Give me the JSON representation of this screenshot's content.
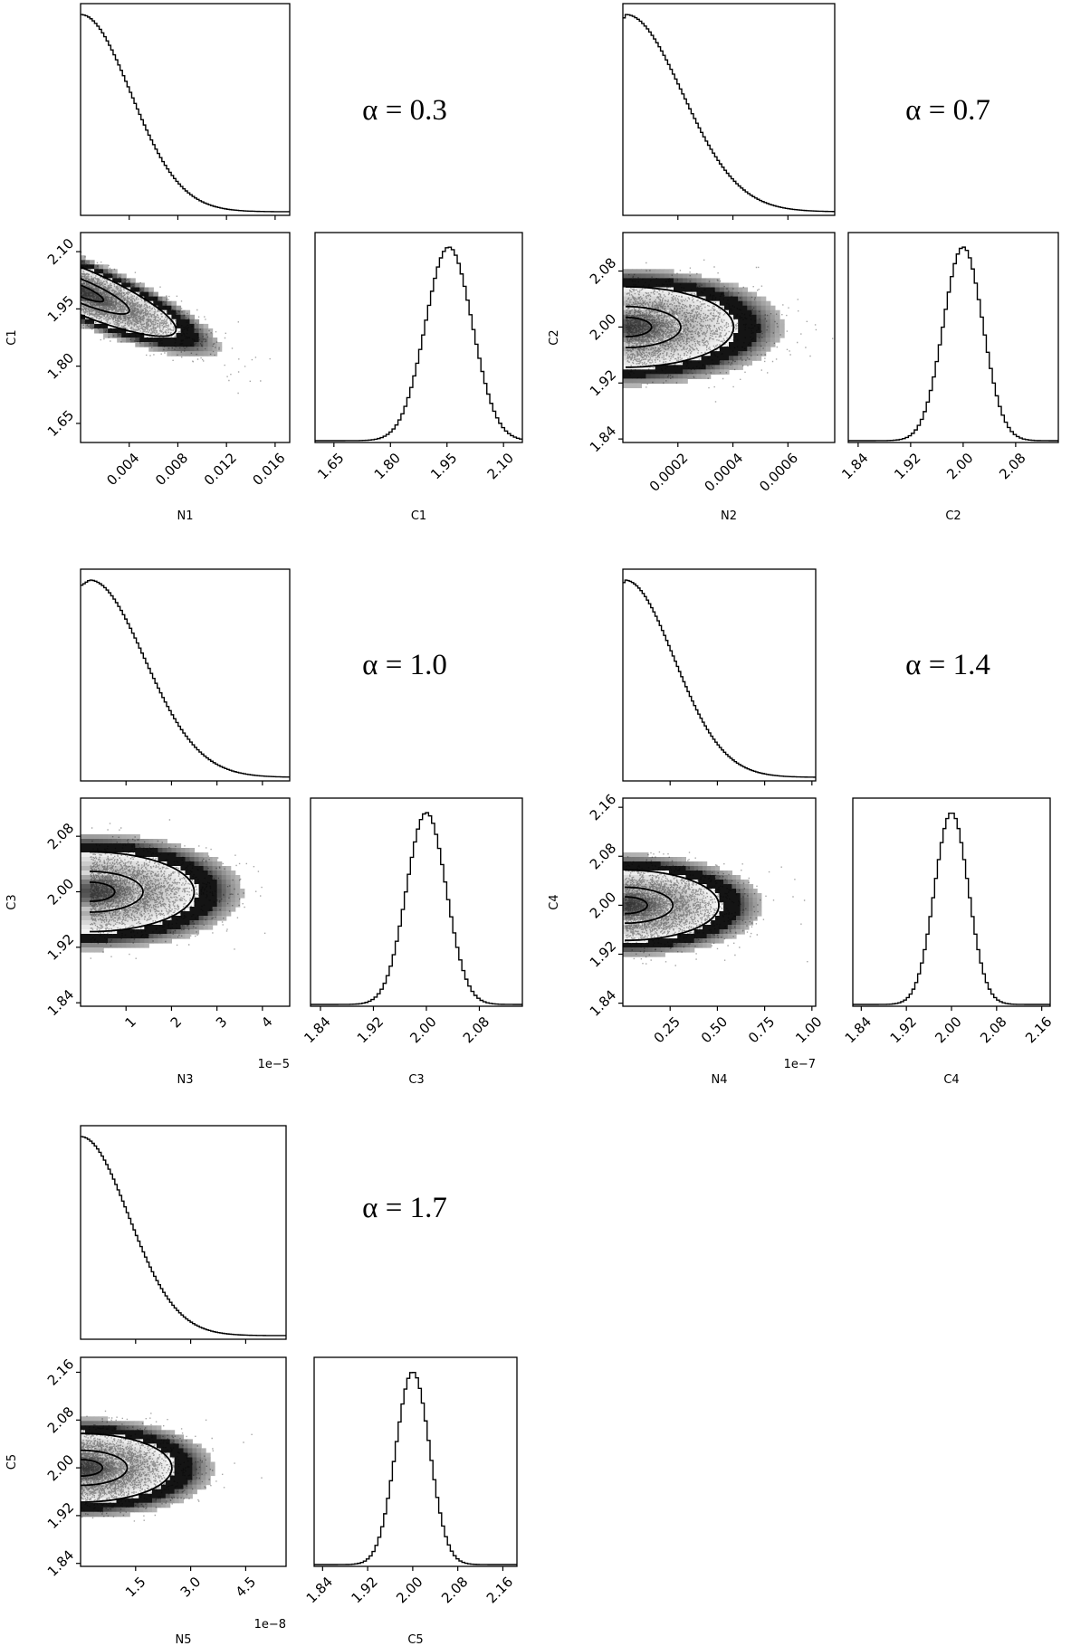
{
  "chart_data": [
    {
      "type": "corner",
      "label": "α = 0.3",
      "x_param": "N1",
      "y_param": "C1",
      "x_ticks": [
        "0.004",
        "0.008",
        "0.012",
        "0.016"
      ],
      "x_tick_values": [
        0.004,
        0.008,
        0.012,
        0.016
      ],
      "x_range": [
        0,
        0.0172
      ],
      "x_offset": "",
      "y_ticks": [
        "1.65",
        "1.80",
        "1.95",
        "2.10"
      ],
      "y_tick_values": [
        1.65,
        1.8,
        1.95,
        2.1
      ],
      "y_range": [
        1.6,
        2.15
      ],
      "c_ticks": [
        "1.65",
        "1.80",
        "1.95",
        "2.10"
      ],
      "c_tick_values": [
        1.65,
        1.8,
        1.95,
        2.1
      ],
      "c_range": [
        1.6,
        2.15
      ],
      "n_marginal": {
        "mode": 0.0,
        "scale": 0.0041
      },
      "c_marginal": {
        "center": 1.955,
        "sigma": 0.062
      },
      "correlation": -0.85
    },
    {
      "type": "corner",
      "label": "α = 0.7",
      "x_param": "N2",
      "y_param": "C2",
      "x_ticks": [
        "0.0002",
        "0.0004",
        "0.0006"
      ],
      "x_tick_values": [
        0.0002,
        0.0004,
        0.0006
      ],
      "x_range": [
        0,
        0.00077
      ],
      "x_offset": "",
      "y_ticks": [
        "1.84",
        "1.92",
        "2.00",
        "2.08"
      ],
      "y_tick_values": [
        1.84,
        1.92,
        2.0,
        2.08
      ],
      "y_range": [
        1.835,
        2.135
      ],
      "c_ticks": [
        "1.84",
        "1.92",
        "2.00",
        "2.08"
      ],
      "c_tick_values": [
        1.84,
        1.92,
        2.0,
        2.08
      ],
      "c_range": [
        1.825,
        2.145
      ],
      "n_marginal": {
        "mode": 1e-05,
        "scale": 0.000205
      },
      "c_marginal": {
        "center": 2.0,
        "sigma": 0.03
      },
      "correlation": 0.0
    },
    {
      "type": "corner",
      "label": "α = 1.0",
      "x_param": "N3",
      "y_param": "C3",
      "x_ticks": [
        "1",
        "2",
        "3",
        "4"
      ],
      "x_tick_values": [
        1,
        2,
        3,
        4
      ],
      "x_range": [
        0,
        4.6
      ],
      "x_offset": "1e−5",
      "y_ticks": [
        "1.84",
        "1.92",
        "2.00",
        "2.08"
      ],
      "y_tick_values": [
        1.84,
        1.92,
        2.0,
        2.08
      ],
      "y_range": [
        1.835,
        2.135
      ],
      "c_ticks": [
        "1.84",
        "1.92",
        "2.00",
        "2.08"
      ],
      "c_tick_values": [
        1.84,
        1.92,
        2.0,
        2.08
      ],
      "c_range": [
        1.825,
        2.145
      ],
      "n_marginal": {
        "mode": 0.2,
        "scale": 1.2
      },
      "c_marginal": {
        "center": 2.0,
        "sigma": 0.03
      },
      "correlation": 0.0
    },
    {
      "type": "corner",
      "label": "α = 1.4",
      "x_param": "N4",
      "y_param": "C4",
      "x_ticks": [
        "0.25",
        "0.50",
        "0.75",
        "1.00"
      ],
      "x_tick_values": [
        0.25,
        0.5,
        0.75,
        1.0
      ],
      "x_range": [
        0,
        1.02
      ],
      "x_offset": "1e−7",
      "y_ticks": [
        "1.84",
        "1.92",
        "2.00",
        "2.08",
        "2.16"
      ],
      "y_tick_values": [
        1.84,
        1.92,
        2.0,
        2.08,
        2.16
      ],
      "y_range": [
        1.835,
        2.175
      ],
      "c_ticks": [
        "1.84",
        "1.92",
        "2.00",
        "2.08",
        "2.16"
      ],
      "c_tick_values": [
        1.84,
        1.92,
        2.0,
        2.08,
        2.16
      ],
      "c_range": [
        1.825,
        2.175
      ],
      "n_marginal": {
        "mode": 0.01,
        "scale": 0.26
      },
      "c_marginal": {
        "center": 2.0,
        "sigma": 0.03
      },
      "correlation": 0.0
    },
    {
      "type": "corner",
      "label": "α = 1.7",
      "x_param": "N5",
      "y_param": "C5",
      "x_ticks": [
        "1.5",
        "3.0",
        "4.5"
      ],
      "x_tick_values": [
        1.5,
        3.0,
        4.5
      ],
      "x_range": [
        0,
        5.6
      ],
      "x_offset": "1e−8",
      "y_ticks": [
        "1.84",
        "1.92",
        "2.00",
        "2.08",
        "2.16"
      ],
      "y_tick_values": [
        1.84,
        1.92,
        2.0,
        2.08,
        2.16
      ],
      "y_range": [
        1.835,
        2.185
      ],
      "c_ticks": [
        "1.84",
        "1.92",
        "2.00",
        "2.08",
        "2.16"
      ],
      "c_tick_values": [
        1.84,
        1.92,
        2.0,
        2.08,
        2.16
      ],
      "c_range": [
        1.825,
        2.185
      ],
      "n_marginal": {
        "mode": 0.0,
        "scale": 1.3
      },
      "c_marginal": {
        "center": 2.0,
        "sigma": 0.03
      },
      "correlation": 0.0
    }
  ]
}
